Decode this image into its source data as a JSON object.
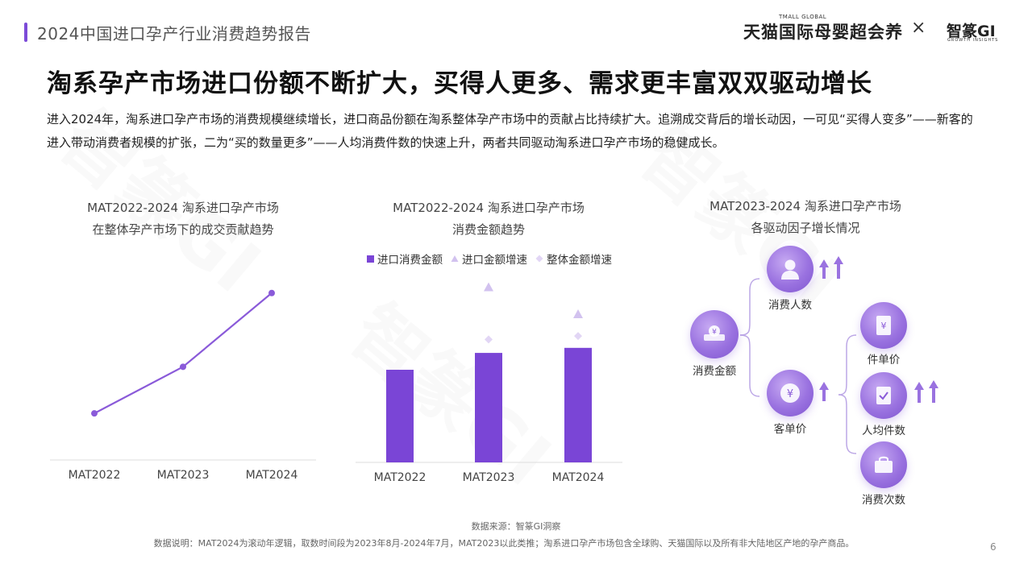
{
  "header": {
    "report_title": "2024中国进口孕产行业消费趋势报告",
    "brand_tmall": "天猫国际母婴超会养",
    "brand_tmall_small": "TMALL GLOBAL",
    "brand_separator": "×",
    "brand_zm": "智篆GI",
    "brand_zm_small": "GROWTH INSIGHTS"
  },
  "headline": "淘系孕产市场进口份额不断扩大，买得人更多、需求更丰富双双驱动增长",
  "intro": "进入2024年，淘系进口孕产市场的消费规模继续增长，进口商品份额在淘系整体孕产市场中的贡献占比持续扩大。追溯成交背后的增长动因，一可见“买得人变多”——新客的进入带动消费者规模的扩张，二为“买的数量更多”——人均消费件数的快速上升，两者共同驱动淘系进口孕产市场的稳健成长。",
  "watermark": "智篆GI",
  "colors": {
    "accent": "#7c4bd8",
    "bar": "#7a45d6",
    "marker": "#d2c2ef",
    "line": "#8a5ad9"
  },
  "chart_data": [
    {
      "type": "line",
      "title_line1": "MAT2022-2024 淘系进口孕产市场",
      "title_line2": "在整体孕产市场下的成交贡献趋势",
      "categories": [
        "MAT2022",
        "MAT2023",
        "MAT2024"
      ],
      "series": [
        {
          "values": [
            0.24,
            0.48,
            0.86
          ]
        }
      ],
      "ylim": [
        0,
        1
      ],
      "note": "relative index, no y-axis printed"
    },
    {
      "type": "bar",
      "title_line1": "MAT2022-2024 淘系进口孕产市场",
      "title_line2": "消费金额趋势",
      "categories": [
        "MAT2022",
        "MAT2023",
        "MAT2024"
      ],
      "legend": [
        "进口消费金额",
        "进口金额增速",
        "整体金额增速"
      ],
      "series": [
        {
          "name": "进口消费金额",
          "values": [
            0.55,
            0.65,
            0.68
          ]
        },
        {
          "name": "进口金额增速",
          "values": [
            null,
            1.04,
            0.88
          ]
        },
        {
          "name": "整体金额增速",
          "values": [
            null,
            0.73,
            0.75
          ]
        }
      ],
      "ylim": [
        0,
        1.1
      ]
    }
  ],
  "drivers": {
    "title_line1": "MAT2023-2024 淘系进口孕产市场",
    "title_line2": "各驱动因子增长情况",
    "root": "消费金额",
    "consumers": "消费人数",
    "unit_price": "客单价",
    "item_price": "件单价",
    "items_per_person": "人均件数",
    "frequency": "消费次数"
  },
  "footer": {
    "source": "数据来源：智篆GI洞察",
    "note": "数据说明：MAT2024为滚动年逻辑，取数时间段为2023年8月-2024年7月，MAT2023以此类推；淘系进口孕产市场包含全球购、天猫国际以及所有非大陆地区产地的孕产商品。",
    "page": "6"
  }
}
